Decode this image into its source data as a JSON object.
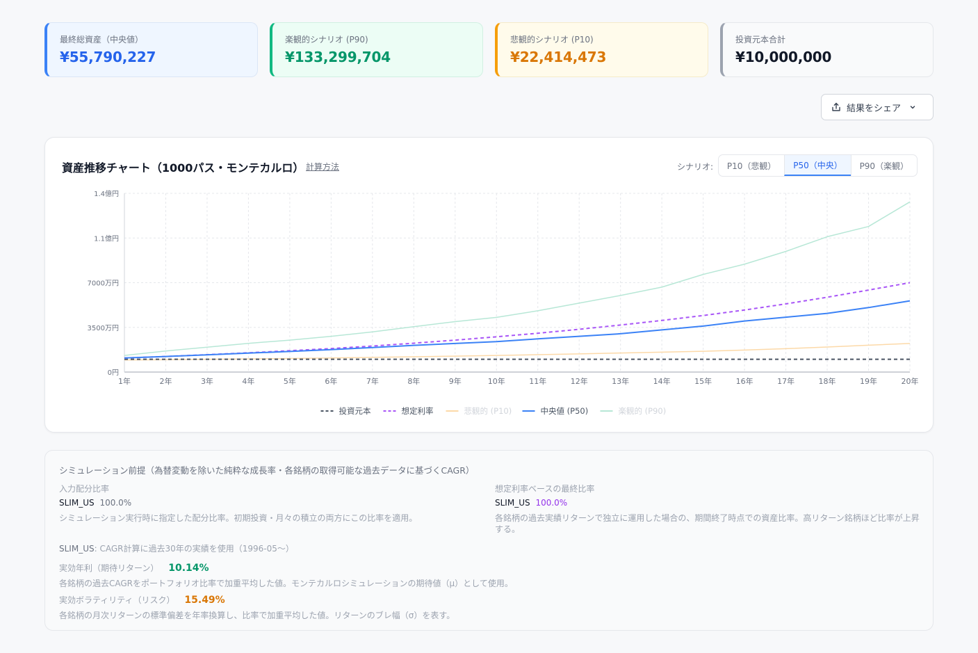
{
  "stats": [
    {
      "label": "最終総資産（中央値）",
      "value": "¥55,790,227",
      "color": "#2563eb"
    },
    {
      "label": "楽観的シナリオ (P90)",
      "value": "¥133,299,704",
      "color": "#059669"
    },
    {
      "label": "悲観的シナリオ (P10)",
      "value": "¥22,414,473",
      "color": "#d97706"
    },
    {
      "label": "投資元本合計",
      "value": "¥10,000,000",
      "color": "#111827"
    }
  ],
  "share": {
    "label": "結果をシェア",
    "icon": "share-icon",
    "chevron": "chevron-down-icon"
  },
  "chart_header": {
    "title": "資産推移チャート（1000パス・モンテカルロ）",
    "calc_link": "計算方法",
    "scenario_label": "シナリオ:",
    "tabs": [
      {
        "label": "P10（悲観）",
        "active": false
      },
      {
        "label": "P50（中央）",
        "active": true
      },
      {
        "label": "P90（楽観）",
        "active": false
      }
    ]
  },
  "chart_data": {
    "type": "line",
    "x": [
      1,
      2,
      3,
      4,
      5,
      6,
      7,
      8,
      9,
      10,
      11,
      12,
      13,
      14,
      15,
      16,
      17,
      18,
      19,
      20
    ],
    "x_tick_labels": [
      "1年",
      "2年",
      "3年",
      "4年",
      "5年",
      "6年",
      "7年",
      "8年",
      "9年",
      "10年",
      "11年",
      "12年",
      "13年",
      "14年",
      "15年",
      "16年",
      "17年",
      "18年",
      "19年",
      "20年"
    ],
    "y_ticks": [
      0,
      35000000,
      70000000,
      105000000,
      140000000
    ],
    "y_tick_labels": [
      "0円",
      "3500万円",
      "7000万円",
      "1.1億円",
      "1.4億円"
    ],
    "ylim": [
      0,
      140000000
    ],
    "grid": true,
    "legend_position": "bottom",
    "series": [
      {
        "name": "投資元本",
        "color": "#4b5563",
        "dash": true,
        "faded": false,
        "values": [
          10000000,
          10000000,
          10000000,
          10000000,
          10000000,
          10000000,
          10000000,
          10000000,
          10000000,
          10000000,
          10000000,
          10000000,
          10000000,
          10000000,
          10000000,
          10000000,
          10000000,
          10000000,
          10000000,
          10000000
        ]
      },
      {
        "name": "想定利率",
        "color": "#a855f7",
        "dash": true,
        "faded": false,
        "values": [
          11000000,
          12200000,
          13600000,
          15100000,
          16700000,
          18400000,
          20400000,
          22600000,
          25000000,
          27600000,
          30400000,
          33500000,
          36800000,
          40400000,
          44300000,
          48600000,
          53400000,
          58600000,
          64200000,
          70000000
        ]
      },
      {
        "name": "悲観的 (P10)",
        "color": "#fcd9a8",
        "dash": false,
        "faded": true,
        "values": [
          9500000,
          9700000,
          10000000,
          10300000,
          10600000,
          11000000,
          11500000,
          12000000,
          12500000,
          13000000,
          13600000,
          14200000,
          14900000,
          15600000,
          16300000,
          17200000,
          18300000,
          19600000,
          21000000,
          22400000
        ]
      },
      {
        "name": "中央値 (P50)",
        "color": "#3b82f6",
        "dash": false,
        "faded": false,
        "values": [
          11000000,
          12200000,
          13500000,
          14800000,
          16100000,
          17600000,
          19200000,
          20900000,
          22400000,
          23800000,
          26000000,
          28000000,
          30000000,
          33000000,
          36000000,
          40000000,
          43000000,
          46000000,
          50500000,
          55800000
        ]
      },
      {
        "name": "楽観的 (P90)",
        "color": "#b7e7d6",
        "dash": false,
        "faded": true,
        "values": [
          13000000,
          16500000,
          19500000,
          22500000,
          25000000,
          28000000,
          31500000,
          35500000,
          39500000,
          42800000,
          48000000,
          54000000,
          60000000,
          66500000,
          76500000,
          84500000,
          94500000,
          106000000,
          114000000,
          133300000
        ]
      }
    ]
  },
  "info": {
    "title": "シミュレーション前提（為替変動を除いた純粋な成長率・各銘柄の取得可能な過去データに基づくCAGR）",
    "left_heading": "入力配分比率",
    "left_asset": "SLIM_US",
    "left_pct": "100.0%",
    "left_desc": "シミュレーション実行時に指定した配分比率。初期投資・月々の積立の両方にこの比率を適用。",
    "right_heading": "想定利率ベースの最終比率",
    "right_asset": "SLIM_US",
    "right_pct": "100.0%",
    "right_desc_1": "各銘柄の過去実績リターンで独立に運用した場合の、期間終了時点での資産比率。高リターン銘柄ほど比率が上昇",
    "right_desc_2": "する。",
    "cagr_asset": "SLIM_US",
    "cagr_note": ": CAGR計算に過去30年の実績を使用（1996-05〜）",
    "return_label": "実効年利（期待リターン）",
    "return_value": "10.14%",
    "return_desc": "各銘柄の過去CAGRをポートフォリオ比率で加重平均した値。モンテカルロシミュレーションの期待値（μ）として使用。",
    "vol_label": "実効ボラティリティ（リスク）",
    "vol_value": "15.49%",
    "vol_desc": "各銘柄の月次リターンの標準偏差を年率換算し、比率で加重平均した値。リターンのブレ幅（σ）を表す。"
  }
}
